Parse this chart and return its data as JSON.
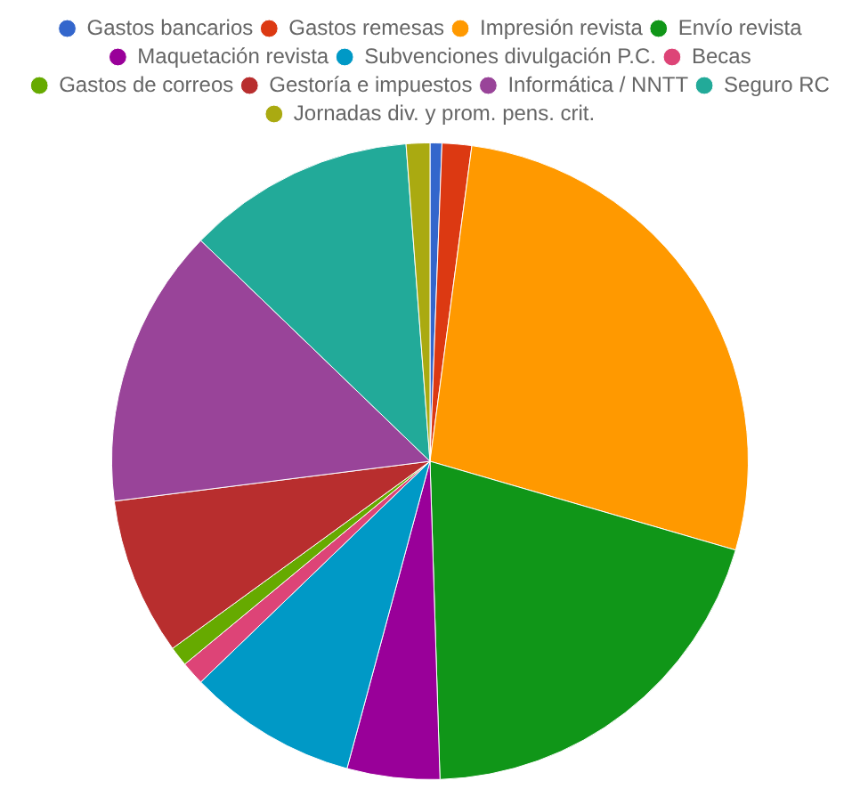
{
  "chart_data": {
    "type": "pie",
    "categories": [
      "Gastos bancarios",
      "Gastos remesas",
      "Impresión revista",
      "Envío revista",
      "Maquetación revista",
      "Subvenciones divulgación P.C.",
      "Becas",
      "Gastos de correos",
      "Gestoría e impuestos",
      "Informática / NNTT",
      "Seguro RC",
      "Jornadas div. y prom. pens. crit."
    ],
    "values": [
      0.6,
      1.5,
      27.4,
      20.0,
      4.7,
      8.6,
      1.2,
      1.0,
      8.0,
      14.2,
      11.6,
      1.2
    ],
    "colors": [
      "#3366cc",
      "#dc3912",
      "#ff9900",
      "#109618",
      "#990099",
      "#0099c6",
      "#dd4477",
      "#66aa00",
      "#b82e2e",
      "#994499",
      "#22aa99",
      "#aaaa11"
    ],
    "legend": "top"
  }
}
